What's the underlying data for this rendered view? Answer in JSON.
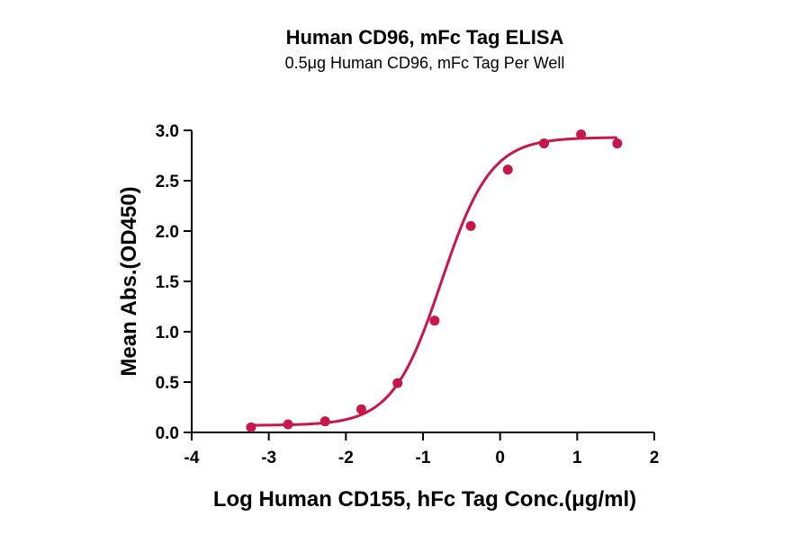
{
  "chart_data": {
    "type": "scatter",
    "title": "Human CD96, mFc Tag ELISA",
    "subtitle": "0.5μg Human CD96, mFc Tag Per Well",
    "xlabel": "Log Human CD155, hFc Tag Conc.(μg/ml)",
    "ylabel": "Mean Abs.(OD450)",
    "xlim": [
      -4,
      2
    ],
    "ylim": [
      0,
      3.0
    ],
    "xticks": [
      -4,
      -3,
      -2,
      -1,
      0,
      1,
      2
    ],
    "yticks": [
      0.0,
      0.5,
      1.0,
      1.5,
      2.0,
      2.5,
      3.0
    ],
    "xtick_labels": [
      "-4",
      "-3",
      "-2",
      "-1",
      "0",
      "1",
      "2"
    ],
    "ytick_labels": [
      "0.0",
      "0.5",
      "1.0",
      "1.5",
      "2.0",
      "2.5",
      "3.0"
    ],
    "grid": false,
    "color": "#c8174a",
    "points": {
      "x": [
        -3.23,
        -2.75,
        -2.27,
        -1.8,
        -1.33,
        -0.85,
        -0.38,
        0.1,
        0.57,
        1.05,
        1.52
      ],
      "y": [
        0.05,
        0.08,
        0.11,
        0.23,
        0.49,
        1.11,
        2.05,
        2.61,
        2.87,
        2.96,
        2.87
      ]
    },
    "fit_curve": {
      "model": "4PL",
      "bottom": 0.07,
      "top": 2.93,
      "log_ec50": -0.76,
      "hill_slope": 1.36,
      "x_range": [
        -3.23,
        1.52
      ]
    }
  }
}
